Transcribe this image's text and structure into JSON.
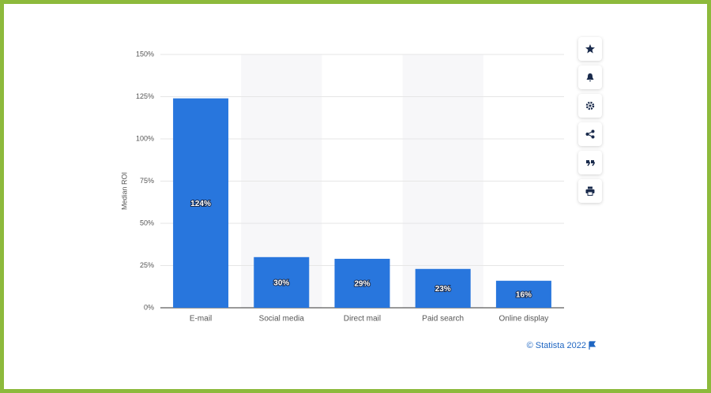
{
  "chart_data": {
    "type": "bar",
    "y_axis_label": "Median ROI",
    "categories": [
      "E-mail",
      "Social media",
      "Direct mail",
      "Paid search",
      "Online display"
    ],
    "values": [
      124,
      30,
      29,
      23,
      16
    ],
    "value_labels": [
      "124%",
      "30%",
      "29%",
      "23%",
      "16%"
    ],
    "color": "#2876dd",
    "ylim": [
      0,
      150
    ],
    "yticks": [
      {
        "value": 0,
        "label": "0%"
      },
      {
        "value": 25,
        "label": "25%"
      },
      {
        "value": 50,
        "label": "50%"
      },
      {
        "value": 75,
        "label": "75%"
      },
      {
        "value": 100,
        "label": "100%"
      },
      {
        "value": 125,
        "label": "125%"
      },
      {
        "value": 150,
        "label": "150%"
      }
    ],
    "grid": true,
    "source": "© Statista 2022"
  }
}
